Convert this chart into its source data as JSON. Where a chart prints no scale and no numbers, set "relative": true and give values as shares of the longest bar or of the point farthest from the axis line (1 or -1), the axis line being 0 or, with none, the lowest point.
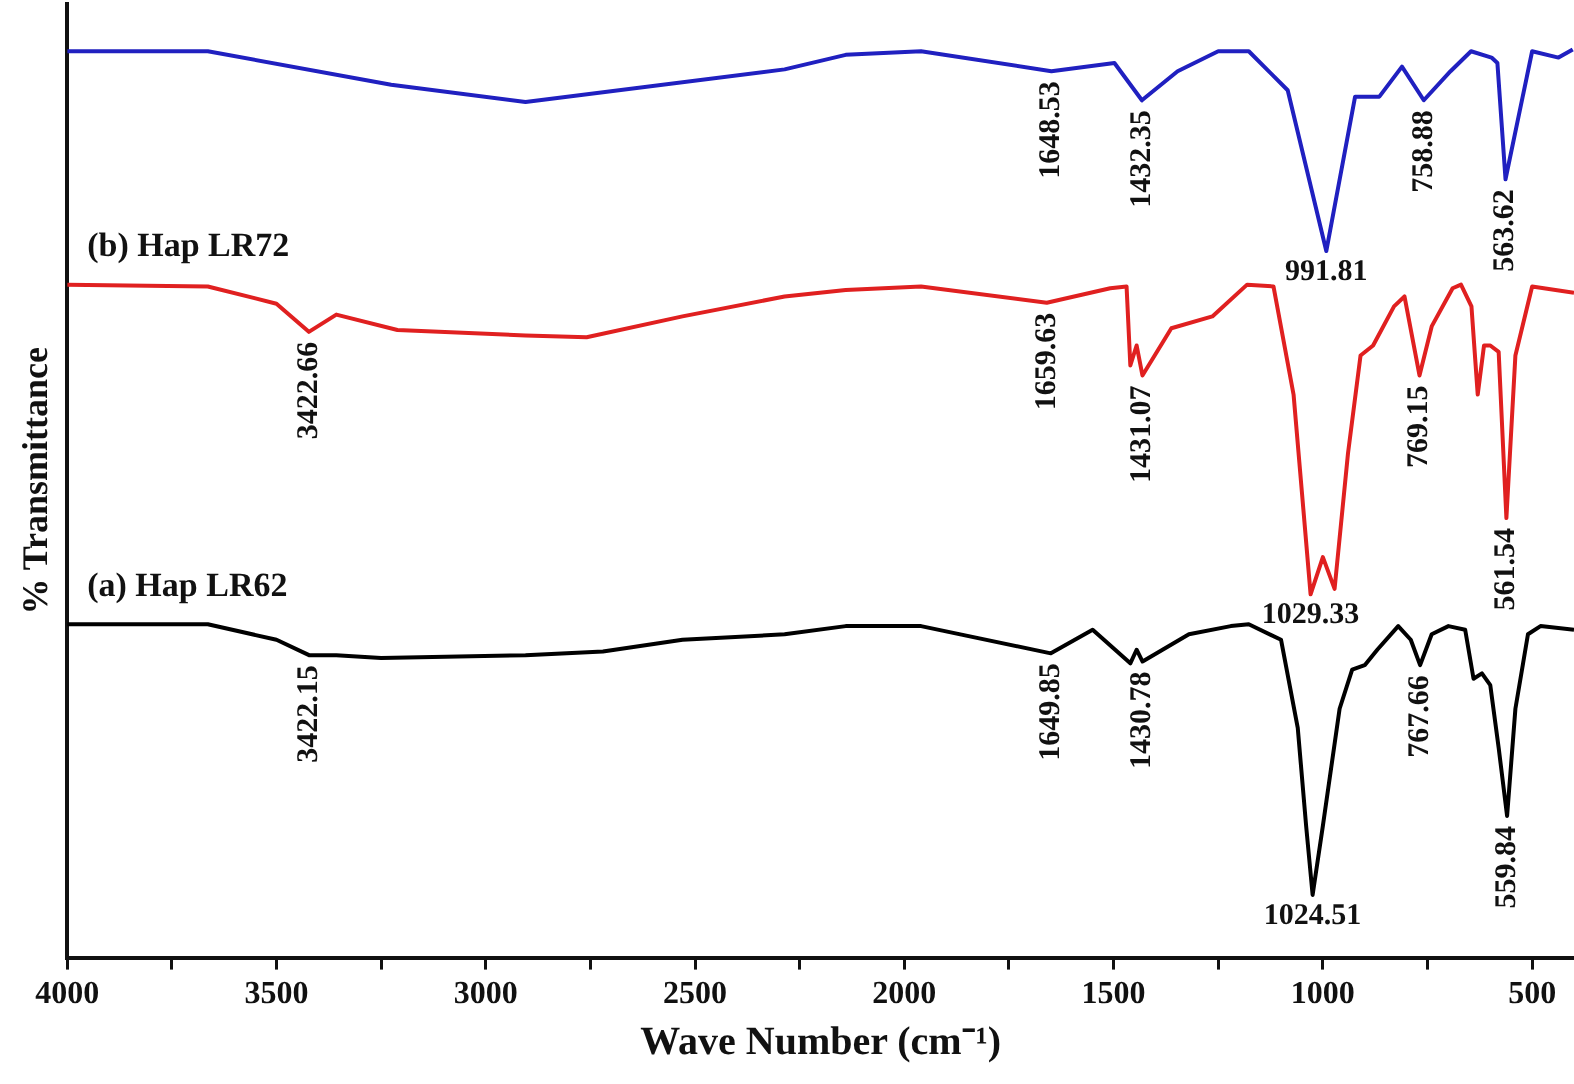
{
  "chart_data": {
    "type": "line",
    "relative": true,
    "xlabel": "Wave Number (cm⁻¹)",
    "ylabel": "% Transmittance",
    "xlim": [
      4000,
      400
    ],
    "xticks": [
      4000,
      {
        "value": 3750,
        "label": null
      },
      3500,
      {
        "value": 3250,
        "label": null
      },
      3000,
      {
        "value": 2750,
        "label": null
      },
      2500,
      {
        "value": 2250,
        "label": null
      },
      2000,
      {
        "value": 1750,
        "label": null
      },
      1500,
      {
        "value": 1250,
        "label": null
      },
      1000,
      {
        "value": 750,
        "label": null
      },
      500
    ],
    "grid": false,
    "line_style": "solid",
    "series": [
      {
        "color": "#2020c0",
        "x": [
          4000,
          3664,
          3226,
          2905,
          2286,
          2140,
          1960,
          1648.53,
          1498,
          1432.35,
          1347,
          1250,
          1177,
          1084,
          991.81,
          923,
          865,
          811,
          758.88,
          695,
          646,
          597,
          583,
          563.62,
          500,
          437,
          403
        ],
        "values": [
          0.998,
          0.998,
          0.961,
          0.942,
          0.978,
          0.994,
          0.998,
          0.976,
          0.985,
          0.944,
          0.976,
          0.998,
          0.998,
          0.955,
          0.778,
          0.948,
          0.948,
          0.981,
          0.944,
          0.976,
          0.998,
          0.991,
          0.985,
          0.857,
          0.998,
          0.991,
          1
        ]
      },
      {
        "name": "(b) Hap LR72",
        "color": "#e02020",
        "x": [
          4000,
          3664,
          3500,
          3422.66,
          3357,
          3211,
          2905,
          2759,
          2530,
          2286,
          2140,
          1960,
          1659.63,
          1508,
          1469,
          1460,
          1445,
          1431.07,
          1362,
          1264,
          1181,
          1118,
          1070,
          1050,
          1029.33,
          1000,
          972,
          940,
          910,
          880,
          830,
          805,
          769.15,
          740,
          690,
          670,
          645,
          630,
          615,
          600,
          580,
          561.54,
          540,
          500,
          400
        ],
        "values": [
          0.741,
          0.739,
          0.72,
          0.689,
          0.708,
          0.691,
          0.685,
          0.683,
          0.706,
          0.728,
          0.735,
          0.739,
          0.721,
          0.737,
          0.739,
          0.652,
          0.674,
          0.641,
          0.693,
          0.706,
          0.741,
          0.739,
          0.62,
          0.512,
          0.4,
          0.441,
          0.406,
          0.555,
          0.663,
          0.674,
          0.717,
          0.728,
          0.641,
          0.695,
          0.737,
          0.741,
          0.717,
          0.62,
          0.674,
          0.674,
          0.667,
          0.484,
          0.663,
          0.739,
          0.732
        ]
      },
      {
        "name": "(a) Hap LR62",
        "color": "#000000",
        "x": [
          4000,
          3664,
          3500,
          3422.15,
          3357,
          3250,
          2905,
          2720,
          2530,
          2286,
          2140,
          1960,
          1649.85,
          1550,
          1460,
          1445,
          1430.78,
          1320,
          1220,
          1177,
          1100,
          1060,
          1040,
          1024.51,
          1000,
          960,
          930,
          900,
          870,
          820,
          790,
          767.66,
          740,
          700,
          660,
          640,
          620,
          600,
          580,
          559.84,
          540,
          510,
          480,
          400
        ],
        "values": [
          0.367,
          0.367,
          0.35,
          0.333,
          0.333,
          0.33,
          0.333,
          0.337,
          0.35,
          0.356,
          0.365,
          0.365,
          0.335,
          0.361,
          0.324,
          0.339,
          0.326,
          0.356,
          0.365,
          0.367,
          0.35,
          0.253,
          0.145,
          0.069,
          0.145,
          0.274,
          0.317,
          0.322,
          0.339,
          0.365,
          0.35,
          0.322,
          0.356,
          0.365,
          0.361,
          0.307,
          0.313,
          0.3,
          0.231,
          0.156,
          0.274,
          0.356,
          0.365,
          0.361
        ]
      }
    ],
    "annotations": [
      {
        "text": "1648.53",
        "x": 1648.53,
        "y": 0.976
      },
      {
        "text": "1432.35",
        "x": 1432.35,
        "y": 0.944
      },
      {
        "text": "991.81",
        "x": 991.81,
        "y": 0.778
      },
      {
        "text": "758.88",
        "x": 758.88,
        "y": 0.944
      },
      {
        "text": "563.62",
        "x": 563.62,
        "y": 0.857
      },
      {
        "text": "3422.66",
        "x": 3422.66,
        "y": 0.689
      },
      {
        "text": "1659.63",
        "x": 1659.63,
        "y": 0.721
      },
      {
        "text": "1431.07",
        "x": 1431.07,
        "y": 0.641
      },
      {
        "text": "1029.33",
        "x": 1029.33,
        "y": 0.4
      },
      {
        "text": "769.15",
        "x": 769.15,
        "y": 0.641
      },
      {
        "text": "561.54",
        "x": 561.54,
        "y": 0.484
      },
      {
        "text": "3422.15",
        "x": 3422.15,
        "y": 0.333
      },
      {
        "text": "1649.85",
        "x": 1649.85,
        "y": 0.335
      },
      {
        "text": "1430.78",
        "x": 1430.78,
        "y": 0.326
      },
      {
        "text": "1024.51",
        "x": 1024.51,
        "y": 0.069
      },
      {
        "text": "767.66",
        "x": 767.66,
        "y": 0.322
      },
      {
        "text": "559.84",
        "x": 559.84,
        "y": 0.156
      }
    ]
  }
}
